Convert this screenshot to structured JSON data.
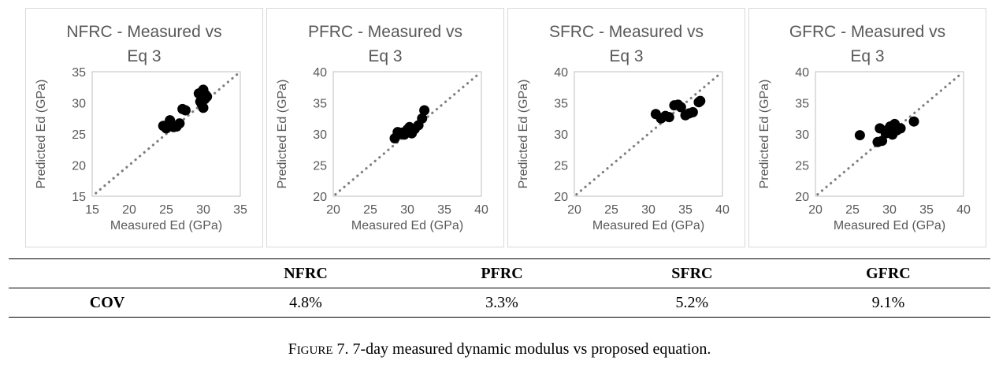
{
  "chart_data": [
    {
      "type": "scatter",
      "title": "NFRC - Measured vs Eq 3",
      "title_lines": [
        "NFRC - Measured vs",
        "Eq 3"
      ],
      "xlabel": "Measured Ed (GPa)",
      "ylabel": "Predicted Ed (GPa)",
      "xlim": [
        15,
        35
      ],
      "ylim": [
        15,
        35
      ],
      "xticks": [
        15,
        20,
        25,
        30,
        35
      ],
      "yticks": [
        15,
        20,
        25,
        30,
        35
      ],
      "xtick_labels": [
        "15",
        "20",
        "25",
        "30",
        "35"
      ],
      "ytick_labels": [
        "15",
        "20",
        "25",
        "30",
        "35"
      ],
      "grid": false,
      "reference_line": {
        "style": "dotted",
        "color": "#808080",
        "x": [
          15.5,
          34.8
        ],
        "y": [
          15.5,
          34.8
        ]
      },
      "series": [
        {
          "marker_color": "#000000",
          "x": [
            24.6,
            25.0,
            25.3,
            25.5,
            26.0,
            26.4,
            26.8,
            27.2,
            27.6,
            29.4,
            29.6,
            29.8,
            30.0,
            30.0,
            30.3,
            30.5,
            30.2
          ],
          "y": [
            26.3,
            25.9,
            26.6,
            27.2,
            26.1,
            26.2,
            26.7,
            29.0,
            28.8,
            31.5,
            30.2,
            29.8,
            32.1,
            29.2,
            31.3,
            31.0,
            30.6
          ]
        }
      ]
    },
    {
      "type": "scatter",
      "title": "PFRC - Measured vs Eq 3",
      "title_lines": [
        "PFRC - Measured vs",
        "Eq 3"
      ],
      "xlabel": "Measured Ed (GPa)",
      "ylabel": "Predicted Ed (GPa)",
      "xlim": [
        20,
        40
      ],
      "ylim": [
        20,
        40
      ],
      "xticks": [
        20,
        25,
        30,
        35,
        40
      ],
      "yticks": [
        20,
        25,
        30,
        35,
        40
      ],
      "xtick_labels": [
        "20",
        "25",
        "30",
        "35",
        "40"
      ],
      "ytick_labels": [
        "20",
        "25",
        "30",
        "35",
        "40"
      ],
      "grid": false,
      "reference_line": {
        "style": "dotted",
        "color": "#808080",
        "x": [
          20.3,
          39.7
        ],
        "y": [
          20.3,
          39.7
        ]
      },
      "series": [
        {
          "marker_color": "#000000",
          "x": [
            28.3,
            28.7,
            29.0,
            29.3,
            29.6,
            30.0,
            30.3,
            30.6,
            31.0,
            31.5,
            32.0,
            32.3
          ],
          "y": [
            29.3,
            30.3,
            30.0,
            30.2,
            29.9,
            30.7,
            31.1,
            30.1,
            30.8,
            31.4,
            32.5,
            33.8
          ]
        }
      ]
    },
    {
      "type": "scatter",
      "title": "SFRC - Measured vs Eq 3",
      "title_lines": [
        "SFRC - Measured vs",
        "Eq 3"
      ],
      "xlabel": "Measured Ed (GPa)",
      "ylabel": "Predicted Ed (GPa)",
      "xlim": [
        20,
        40
      ],
      "ylim": [
        20,
        40
      ],
      "xticks": [
        20,
        25,
        30,
        35,
        40
      ],
      "yticks": [
        20,
        25,
        30,
        35,
        40
      ],
      "xtick_labels": [
        "20",
        "25",
        "30",
        "35",
        "40"
      ],
      "ytick_labels": [
        "20",
        "25",
        "30",
        "35",
        "40"
      ],
      "grid": false,
      "reference_line": {
        "style": "dotted",
        "color": "#808080",
        "x": [
          20.3,
          39.7
        ],
        "y": [
          20.3,
          39.7
        ]
      },
      "series": [
        {
          "marker_color": "#000000",
          "x": [
            31.0,
            31.7,
            32.3,
            32.8,
            33.5,
            34.0,
            34.4,
            35.0,
            35.5,
            36.0,
            36.8,
            37.0
          ],
          "y": [
            33.2,
            32.5,
            32.9,
            32.7,
            34.6,
            34.7,
            34.3,
            33.0,
            33.3,
            33.5,
            35.1,
            35.3
          ]
        }
      ]
    },
    {
      "type": "scatter",
      "title": "GFRC - Measured vs Eq 3",
      "title_lines": [
        "GFRC - Measured vs",
        "Eq 3"
      ],
      "xlabel": "Measured Ed (GPa)",
      "ylabel": "Predicted Ed (GPa)",
      "xlim": [
        20,
        40
      ],
      "ylim": [
        20,
        40
      ],
      "xticks": [
        20,
        25,
        30,
        35,
        40
      ],
      "yticks": [
        20,
        25,
        30,
        35,
        40
      ],
      "xtick_labels": [
        "20",
        "25",
        "30",
        "35",
        "40"
      ],
      "ytick_labels": [
        "20",
        "25",
        "30",
        "35",
        "40"
      ],
      "grid": false,
      "reference_line": {
        "style": "dotted",
        "color": "#808080",
        "x": [
          20.3,
          39.7
        ],
        "y": [
          20.3,
          39.7
        ]
      },
      "series": [
        {
          "marker_color": "#000000",
          "x": [
            26.0,
            28.4,
            28.7,
            29.0,
            29.5,
            29.8,
            30.1,
            30.4,
            30.7,
            31.0,
            31.5,
            33.3
          ],
          "y": [
            29.8,
            28.7,
            30.9,
            28.9,
            30.1,
            30.7,
            31.2,
            29.9,
            31.6,
            30.6,
            30.9,
            32.0
          ]
        }
      ]
    }
  ],
  "table": {
    "headers": [
      "",
      "NFRC",
      "PFRC",
      "SFRC",
      "GFRC"
    ],
    "rows": [
      {
        "label": "COV",
        "values": [
          "4.8%",
          "3.3%",
          "5.2%",
          "9.1%"
        ]
      }
    ]
  },
  "caption": {
    "prefix_cap": "F",
    "prefix_small": "IGURE",
    "text": " 7. 7-day measured dynamic modulus vs proposed equation."
  }
}
